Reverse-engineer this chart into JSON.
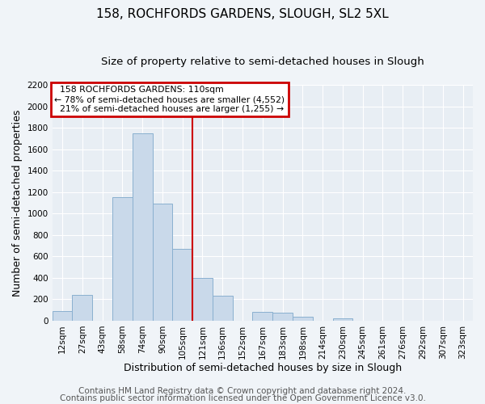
{
  "title": "158, ROCHFORDS GARDENS, SLOUGH, SL2 5XL",
  "subtitle": "Size of property relative to semi-detached houses in Slough",
  "xlabel": "Distribution of semi-detached houses by size in Slough",
  "ylabel": "Number of semi-detached properties",
  "bar_labels": [
    "12sqm",
    "27sqm",
    "43sqm",
    "58sqm",
    "74sqm",
    "90sqm",
    "105sqm",
    "121sqm",
    "136sqm",
    "152sqm",
    "167sqm",
    "183sqm",
    "198sqm",
    "214sqm",
    "230sqm",
    "245sqm",
    "261sqm",
    "276sqm",
    "292sqm",
    "307sqm",
    "323sqm"
  ],
  "bar_values": [
    90,
    240,
    0,
    1150,
    1750,
    1090,
    670,
    400,
    230,
    0,
    85,
    75,
    35,
    0,
    20,
    0,
    0,
    0,
    0,
    0,
    0
  ],
  "bar_color": "#c9d9ea",
  "bar_edge_color": "#8ab0d0",
  "property_label": "158 ROCHFORDS GARDENS: 110sqm",
  "pct_smaller": 78,
  "pct_smaller_count": "4,552",
  "pct_larger": 21,
  "pct_larger_count": "1,255",
  "vline_x_index": 6.5,
  "vline_color": "#cc0000",
  "box_color": "#cc0000",
  "ylim": [
    0,
    2200
  ],
  "yticks": [
    0,
    200,
    400,
    600,
    800,
    1000,
    1200,
    1400,
    1600,
    1800,
    2000,
    2200
  ],
  "footer1": "Contains HM Land Registry data © Crown copyright and database right 2024.",
  "footer2": "Contains public sector information licensed under the Open Government Licence v3.0.",
  "background_color": "#f0f4f8",
  "plot_bg_color": "#e8eef4",
  "grid_color": "#ffffff",
  "title_fontsize": 11,
  "subtitle_fontsize": 9.5,
  "axis_label_fontsize": 9,
  "tick_fontsize": 7.5,
  "footer_fontsize": 7.5
}
